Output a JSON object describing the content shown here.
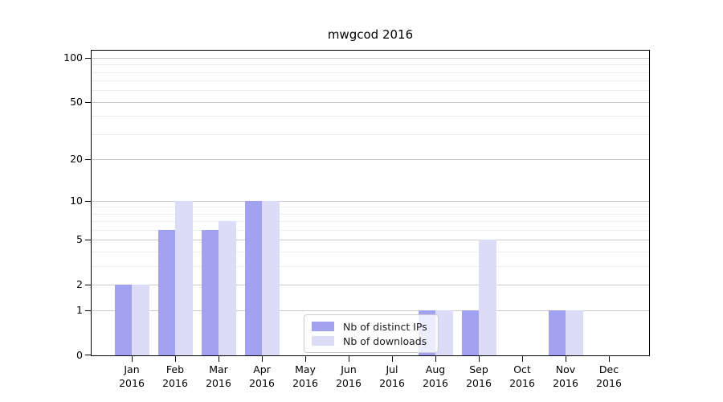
{
  "chart_data": {
    "type": "bar",
    "title": "mwgcod 2016",
    "categories": [
      "Jan",
      "Feb",
      "Mar",
      "Apr",
      "May",
      "Jun",
      "Jul",
      "Aug",
      "Sep",
      "Oct",
      "Nov",
      "Dec"
    ],
    "category_year": "2016",
    "series": [
      {
        "name": "Nb of distinct IPs",
        "color": "#a2a2f0",
        "values": [
          2,
          6,
          6,
          10,
          0,
          0,
          0,
          1,
          1,
          0,
          1,
          0
        ]
      },
      {
        "name": "Nb of downloads",
        "color": "#dcdcf8",
        "values": [
          2,
          10,
          7,
          10,
          0,
          0,
          0,
          1,
          5,
          0,
          1,
          0
        ]
      }
    ],
    "y_axis": {
      "scale": "log1p",
      "ticks": [
        0,
        1,
        2,
        5,
        10,
        20,
        50,
        100
      ],
      "minor_ticks": [
        3,
        4,
        6,
        7,
        8,
        9,
        30,
        40,
        60,
        70,
        80,
        90
      ],
      "axis_max": 112
    },
    "xlabel": "",
    "ylabel": "",
    "grid": true,
    "legend_position": "lower-center-left"
  },
  "colors": {
    "major_grid": "#c9c9c9",
    "minor_grid": "#ececec",
    "spine": "#000000",
    "legend_border": "#cccccc",
    "background": "#ffffff"
  }
}
